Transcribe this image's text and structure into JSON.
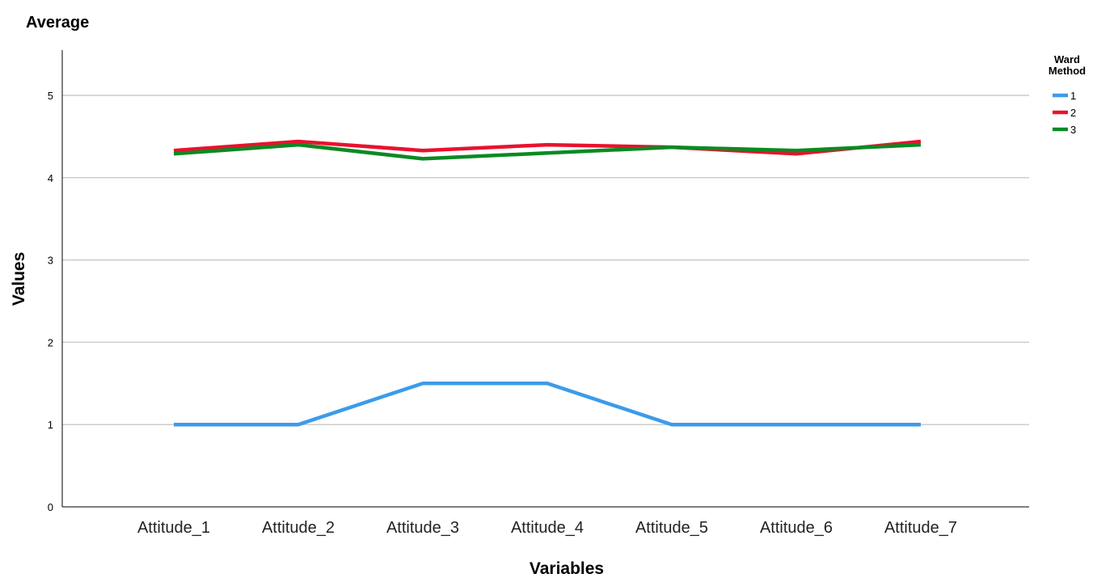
{
  "chart_data": {
    "type": "line",
    "title": "Average",
    "xlabel": "Variables",
    "ylabel": "Values",
    "categories": [
      "Attitude_1",
      "Attitude_2",
      "Attitude_3",
      "Attitude_4",
      "Attitude_5",
      "Attitude_6",
      "Attitude_7"
    ],
    "yticks": [
      "0",
      "1",
      "2",
      "3",
      "4",
      "5"
    ],
    "ylim": [
      0,
      5.5
    ],
    "grid": true,
    "legend": {
      "title_line1": "Ward",
      "title_line2": "Method",
      "placement": "top-right"
    },
    "series": [
      {
        "name": "1",
        "color": "#3d9be9",
        "values": [
          1.0,
          1.0,
          1.5,
          1.5,
          1.0,
          1.0,
          1.0
        ]
      },
      {
        "name": "2",
        "color": "#e8122e",
        "values": [
          4.33,
          4.44,
          4.33,
          4.4,
          4.37,
          4.29,
          4.44
        ]
      },
      {
        "name": "3",
        "color": "#0a8a22",
        "values": [
          4.29,
          4.4,
          4.23,
          4.3,
          4.37,
          4.33,
          4.4
        ]
      }
    ]
  }
}
